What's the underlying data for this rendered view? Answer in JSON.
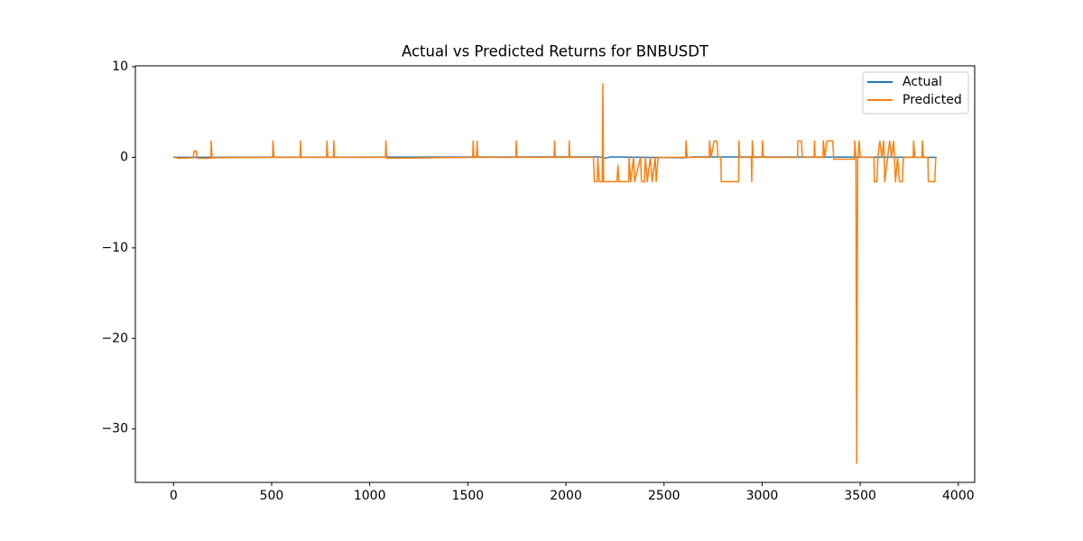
{
  "chart_data": {
    "type": "line",
    "title": "Actual vs Predicted Returns for BNBUSDT",
    "legend": "upper right",
    "xlim": [
      -194.5,
      4083.5
    ],
    "xticks": [
      0,
      500,
      1000,
      1500,
      2000,
      2500,
      3000,
      3500,
      4000
    ],
    "ylim": [
      -35.9,
      10.1
    ],
    "yticks": [
      {
        "value": -30,
        "label": "−30"
      },
      {
        "value": -20,
        "label": "−20"
      },
      {
        "value": -10,
        "label": "−10"
      },
      0,
      10
    ],
    "series": [
      {
        "name": "Actual",
        "color": "#1f77b4",
        "x": [
          0,
          2170,
          2200,
          2230,
          2600,
          2650,
          3889
        ],
        "values": [
          0,
          0.05,
          -0.1,
          0.05,
          -0.05,
          0.05,
          0
        ]
      },
      {
        "name": "Predicted",
        "color": "#ff7f0e",
        "x": [
          0,
          20,
          100,
          105,
          115,
          120,
          190,
          192,
          196,
          505,
          507,
          512,
          645,
          647,
          650,
          780,
          782,
          786,
          815,
          817,
          820,
          1080,
          1082,
          1086,
          1525,
          1527,
          1531,
          1545,
          1547,
          1551,
          1745,
          1747,
          1750,
          1940,
          1942,
          1946,
          2015,
          2017,
          2020,
          2140,
          2145,
          2160,
          2162,
          2170,
          2185,
          2188,
          2192,
          2260,
          2265,
          2270,
          2320,
          2322,
          2330,
          2345,
          2350,
          2380,
          2385,
          2400,
          2405,
          2415,
          2430,
          2440,
          2455,
          2460,
          2470,
          2610,
          2612,
          2618,
          2730,
          2732,
          2740,
          2755,
          2770,
          2775,
          2790,
          2792,
          2880,
          2882,
          2885,
          2945,
          2947,
          2950,
          2955,
          3000,
          3002,
          3006,
          3180,
          3182,
          3200,
          3205,
          3265,
          3267,
          3270,
          3310,
          3312,
          3320,
          3330,
          3360,
          3365,
          3470,
          3472,
          3478,
          3482,
          3487,
          3495,
          3500,
          3570,
          3572,
          3585,
          3590,
          3600,
          3610,
          3620,
          3625,
          3640,
          3650,
          3660,
          3670,
          3680,
          3690,
          3700,
          3715,
          3720,
          3770,
          3772,
          3778,
          3815,
          3817,
          3822,
          3845,
          3847,
          3880,
          3885,
          3889
        ],
        "values": [
          0.1,
          -0.1,
          -0.05,
          0.7,
          0.7,
          -0.1,
          -0.1,
          1.8,
          -0.05,
          0,
          1.8,
          0,
          0,
          1.8,
          0,
          0,
          1.8,
          0,
          0,
          1.8,
          0,
          0,
          1.8,
          -0.1,
          0,
          1.8,
          0,
          0,
          1.8,
          0,
          0,
          1.8,
          0,
          0,
          1.8,
          0,
          0,
          1.8,
          0,
          0,
          -2.7,
          -2.7,
          0,
          -2.7,
          -2.7,
          8.1,
          -2.7,
          -2.7,
          -0.9,
          -2.7,
          -2.7,
          0,
          -2.7,
          0,
          -2.7,
          0,
          -2.7,
          -2.7,
          0,
          -2.7,
          0,
          -2.7,
          0,
          -2.7,
          0,
          0,
          1.8,
          0,
          0,
          1.8,
          0,
          1.8,
          1.8,
          0,
          0,
          -2.7,
          -2.7,
          1.8,
          0,
          0,
          -2.7,
          1.8,
          0,
          0,
          1.8,
          0,
          0,
          1.8,
          1.8,
          0,
          0,
          1.8,
          0,
          0,
          1.8,
          0,
          1.8,
          1.8,
          -0.2,
          -0.2,
          1.8,
          -0.2,
          -33.8,
          -0.2,
          1.8,
          0,
          0,
          -2.7,
          -2.7,
          0,
          1.8,
          0,
          1.8,
          -2.7,
          0,
          1.8,
          0,
          1.8,
          -2.7,
          0,
          -2.7,
          -2.7,
          0,
          0,
          1.8,
          0,
          0,
          1.8,
          0,
          0,
          -2.7,
          -2.7,
          0,
          -0.1
        ]
      }
    ]
  }
}
